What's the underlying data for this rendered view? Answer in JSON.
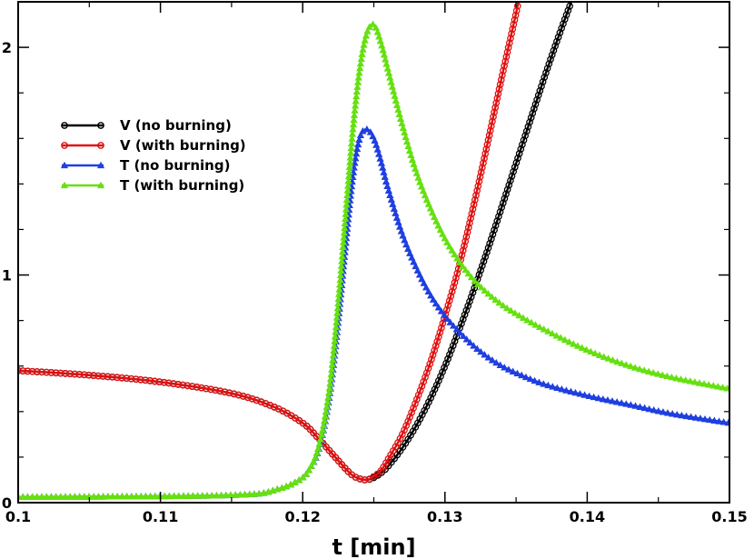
{
  "chart_data": {
    "type": "line",
    "title": "",
    "xlabel": "t [min]",
    "ylabel": "",
    "xlim": [
      0.1,
      0.15
    ],
    "ylim": [
      0,
      2.2
    ],
    "x_ticks": [
      0.1,
      0.11,
      0.12,
      0.13,
      0.14,
      0.15
    ],
    "x_tick_labels": [
      "0.1",
      "0.11",
      "0.12",
      "0.13",
      "0.14",
      "0.15"
    ],
    "y_ticks": [
      0,
      1,
      2
    ],
    "y_tick_labels": [
      "0",
      "1",
      "2"
    ],
    "grid": false,
    "legend_position": "upper-left",
    "series": [
      {
        "name": "V (no burning)",
        "color": "#000000",
        "marker": "circle",
        "x": [
          0.1,
          0.105,
          0.11,
          0.115,
          0.118,
          0.12,
          0.121,
          0.122,
          0.123,
          0.1235,
          0.124,
          0.1245,
          0.125,
          0.1255,
          0.126,
          0.127,
          0.128,
          0.129,
          0.13,
          0.131,
          0.132,
          0.133,
          0.134,
          0.135,
          0.136,
          0.137,
          0.138,
          0.139,
          0.1395
        ],
        "y": [
          0.58,
          0.56,
          0.53,
          0.48,
          0.42,
          0.35,
          0.29,
          0.22,
          0.15,
          0.12,
          0.105,
          0.1,
          0.11,
          0.13,
          0.16,
          0.24,
          0.34,
          0.46,
          0.6,
          0.76,
          0.93,
          1.11,
          1.3,
          1.49,
          1.68,
          1.87,
          2.05,
          2.22,
          2.3
        ]
      },
      {
        "name": "V (with burning)",
        "color": "#e01010",
        "marker": "circle",
        "x": [
          0.1,
          0.105,
          0.11,
          0.115,
          0.118,
          0.12,
          0.121,
          0.122,
          0.123,
          0.1235,
          0.124,
          0.1245,
          0.125,
          0.1255,
          0.126,
          0.127,
          0.128,
          0.129,
          0.13,
          0.131,
          0.132,
          0.133,
          0.134,
          0.135,
          0.1355
        ],
        "y": [
          0.58,
          0.56,
          0.53,
          0.48,
          0.42,
          0.35,
          0.29,
          0.22,
          0.15,
          0.12,
          0.105,
          0.1,
          0.115,
          0.14,
          0.19,
          0.3,
          0.45,
          0.62,
          0.82,
          1.04,
          1.3,
          1.58,
          1.87,
          2.15,
          2.3
        ]
      },
      {
        "name": "T (no burning)",
        "color": "#1f3fe0",
        "marker": "triangle",
        "x": [
          0.1,
          0.105,
          0.11,
          0.113,
          0.115,
          0.117,
          0.118,
          0.119,
          0.12,
          0.1205,
          0.121,
          0.1215,
          0.122,
          0.1225,
          0.123,
          0.1235,
          0.124,
          0.1245,
          0.125,
          0.1255,
          0.126,
          0.127,
          0.128,
          0.129,
          0.13,
          0.131,
          0.132,
          0.133,
          0.134,
          0.135,
          0.137,
          0.14,
          0.143,
          0.146,
          0.15
        ],
        "y": [
          0.025,
          0.026,
          0.028,
          0.03,
          0.033,
          0.04,
          0.055,
          0.075,
          0.11,
          0.15,
          0.21,
          0.33,
          0.52,
          0.8,
          1.12,
          1.42,
          1.6,
          1.64,
          1.6,
          1.5,
          1.38,
          1.18,
          1.03,
          0.91,
          0.82,
          0.75,
          0.69,
          0.64,
          0.6,
          0.57,
          0.52,
          0.47,
          0.43,
          0.39,
          0.35
        ]
      },
      {
        "name": "T (with burning)",
        "color": "#66e010",
        "marker": "triangle",
        "x": [
          0.1,
          0.105,
          0.11,
          0.113,
          0.115,
          0.117,
          0.118,
          0.119,
          0.12,
          0.1205,
          0.121,
          0.1215,
          0.122,
          0.1225,
          0.123,
          0.1235,
          0.124,
          0.1245,
          0.125,
          0.1255,
          0.126,
          0.127,
          0.128,
          0.129,
          0.13,
          0.131,
          0.132,
          0.133,
          0.134,
          0.135,
          0.137,
          0.14,
          0.143,
          0.146,
          0.15
        ],
        "y": [
          0.025,
          0.026,
          0.028,
          0.03,
          0.033,
          0.04,
          0.055,
          0.075,
          0.11,
          0.15,
          0.22,
          0.35,
          0.56,
          0.88,
          1.25,
          1.62,
          1.9,
          2.06,
          2.1,
          2.02,
          1.9,
          1.66,
          1.45,
          1.29,
          1.16,
          1.06,
          0.98,
          0.92,
          0.87,
          0.83,
          0.76,
          0.67,
          0.6,
          0.55,
          0.5
        ]
      }
    ]
  }
}
